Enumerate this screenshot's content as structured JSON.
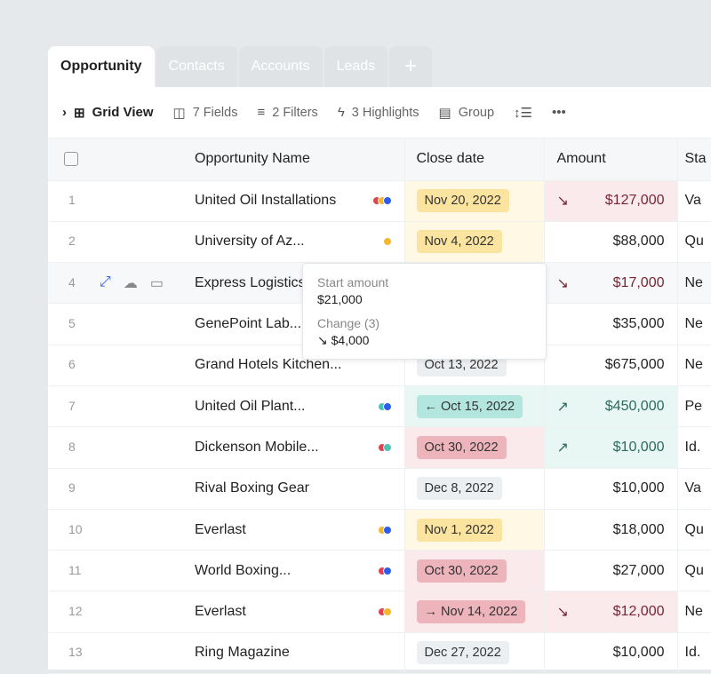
{
  "tabs": [
    {
      "label": "Opportunity",
      "active": true
    },
    {
      "label": "Contacts"
    },
    {
      "label": "Accounts"
    },
    {
      "label": "Leads"
    },
    {
      "label": "+"
    }
  ],
  "toolbar": {
    "view": "Grid View",
    "fields": "7 Fields",
    "filters": "2 Filters",
    "highlights": "3 Highlights",
    "group": "Group"
  },
  "columns": [
    "Opportunity Name",
    "Close date",
    "Amount",
    "Sta"
  ],
  "colors": {
    "red": "#e0424f",
    "yellow": "#f5b731",
    "blue": "#2d5cf0",
    "teal": "#4fc3b3"
  },
  "rows": [
    {
      "num": "1",
      "name": "United Oil Installations",
      "dots": [
        "red",
        "yellow",
        "blue"
      ],
      "date": "Nov 20, 2022",
      "pill": "yellow",
      "dateBg": "yellow",
      "amount": "$127,000",
      "trend": "down",
      "amtBg": "red",
      "stage": "Va"
    },
    {
      "num": "2",
      "name": "University of Az...",
      "dots": [
        "yellow"
      ],
      "date": "Nov 4, 2022",
      "pill": "yellow",
      "dateBg": "yellow",
      "amount": "$88,000",
      "stage": "Qu"
    },
    {
      "num": "4",
      "name": "Express Logistics",
      "dots": [],
      "amount": "$17,000",
      "trend": "down",
      "amtBg": "red",
      "stage": "Ne",
      "hover": true
    },
    {
      "num": "5",
      "name": "GenePoint Lab...",
      "dots": [],
      "amount": "$35,000",
      "stage": "Ne"
    },
    {
      "num": "6",
      "name": "Grand Hotels Kitchen...",
      "dots": [],
      "date": "Oct 13, 2022",
      "pill": "grey",
      "amount": "$675,000",
      "stage": "Ne"
    },
    {
      "num": "7",
      "name": "United Oil Plant...",
      "dots": [
        "teal",
        "blue"
      ],
      "date": "Oct 15, 2022",
      "dateArrow": "←",
      "pill": "teal",
      "dateBg": "teal",
      "amount": "$450,000",
      "trend": "up",
      "amtBg": "teal",
      "stage": "Pe"
    },
    {
      "num": "8",
      "name": "Dickenson Mobile...",
      "dots": [
        "red",
        "teal"
      ],
      "date": "Oct 30, 2022",
      "pill": "red",
      "dateBg": "red",
      "amount": "$10,000",
      "trend": "up",
      "amtBg": "teal",
      "stage": "Id."
    },
    {
      "num": "9",
      "name": "Rival Boxing Gear",
      "dots": [],
      "date": "Dec 8, 2022",
      "pill": "grey",
      "amount": "$10,000",
      "stage": "Va"
    },
    {
      "num": "10",
      "name": "Everlast",
      "dots": [
        "yellow",
        "blue"
      ],
      "date": "Nov 1, 2022",
      "pill": "yellow",
      "dateBg": "yellow",
      "amount": "$18,000",
      "stage": "Qu"
    },
    {
      "num": "11",
      "name": "World Boxing...",
      "dots": [
        "red",
        "blue"
      ],
      "date": "Oct 30, 2022",
      "pill": "red",
      "dateBg": "red",
      "amount": "$27,000",
      "stage": "Qu"
    },
    {
      "num": "12",
      "name": "Everlast",
      "dots": [
        "red",
        "yellow"
      ],
      "date": "Nov 14, 2022",
      "dateArrow": "→",
      "pill": "red",
      "dateBg": "red",
      "amount": "$12,000",
      "trend": "down",
      "amtBg": "red",
      "stage": "Ne"
    },
    {
      "num": "13",
      "name": "Ring Magazine",
      "dots": [],
      "date": "Dec 27, 2022",
      "pill": "grey",
      "amount": "$10,000",
      "stage": "Id."
    }
  ],
  "tooltip": {
    "start_label": "Start amount",
    "start_value": "$21,000",
    "change_label": "Change (3)",
    "change_value": "↘ $4,000"
  }
}
